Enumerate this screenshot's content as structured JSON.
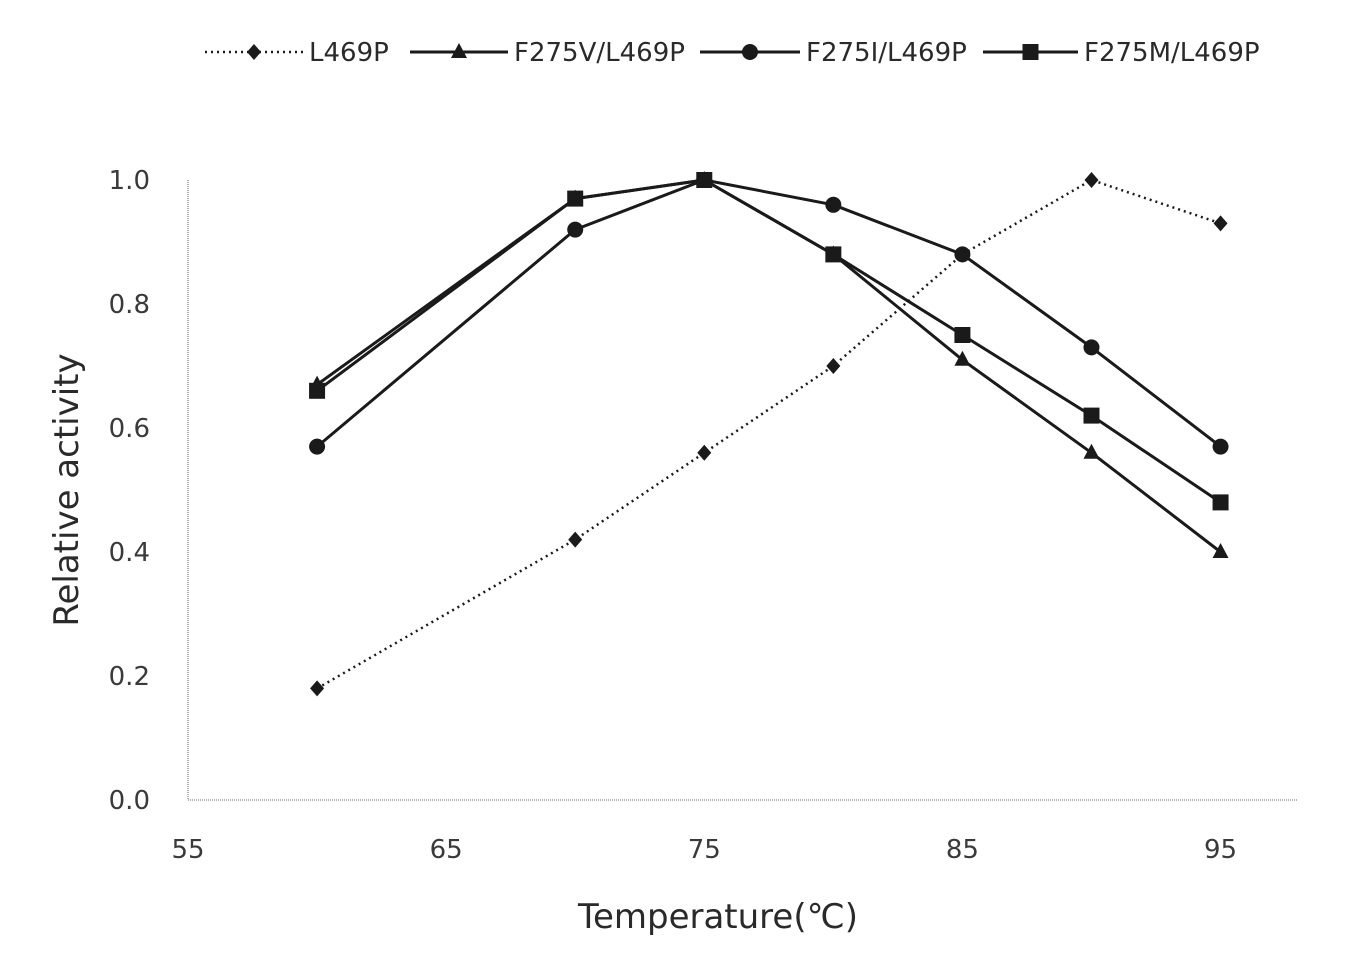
{
  "chart_data": {
    "type": "line",
    "xlabel": "Temperature(℃)",
    "ylabel": "Relative activity",
    "xlim": [
      55,
      98
    ],
    "ylim": [
      0.0,
      1.0
    ],
    "x_ticks": [
      "55",
      "65",
      "75",
      "85",
      "95"
    ],
    "y_ticks": [
      "0.0",
      "0.2",
      "0.4",
      "0.6",
      "0.8",
      "1.0"
    ],
    "x": [
      60,
      70,
      75,
      80,
      85,
      90,
      95
    ],
    "grid": false,
    "legend_position": "top",
    "series": [
      {
        "name": "L469P",
        "values": [
          0.18,
          0.42,
          0.56,
          0.7,
          0.88,
          1.0,
          0.93
        ],
        "marker": "diamond",
        "line_style": "dotted",
        "color": "#1a1a1a"
      },
      {
        "name": "F275V/L469P",
        "values": [
          0.67,
          0.97,
          1.0,
          0.88,
          0.71,
          0.56,
          0.4
        ],
        "marker": "triangle",
        "line_style": "solid",
        "color": "#1a1a1a"
      },
      {
        "name": "F275I/L469P",
        "values": [
          0.57,
          0.92,
          1.0,
          0.96,
          0.88,
          0.73,
          0.57
        ],
        "marker": "circle",
        "line_style": "solid",
        "color": "#1a1a1a"
      },
      {
        "name": "F275M/L469P",
        "values": [
          0.66,
          0.97,
          1.0,
          0.88,
          0.75,
          0.62,
          0.48
        ],
        "marker": "square",
        "line_style": "solid",
        "color": "#1a1a1a"
      }
    ]
  }
}
